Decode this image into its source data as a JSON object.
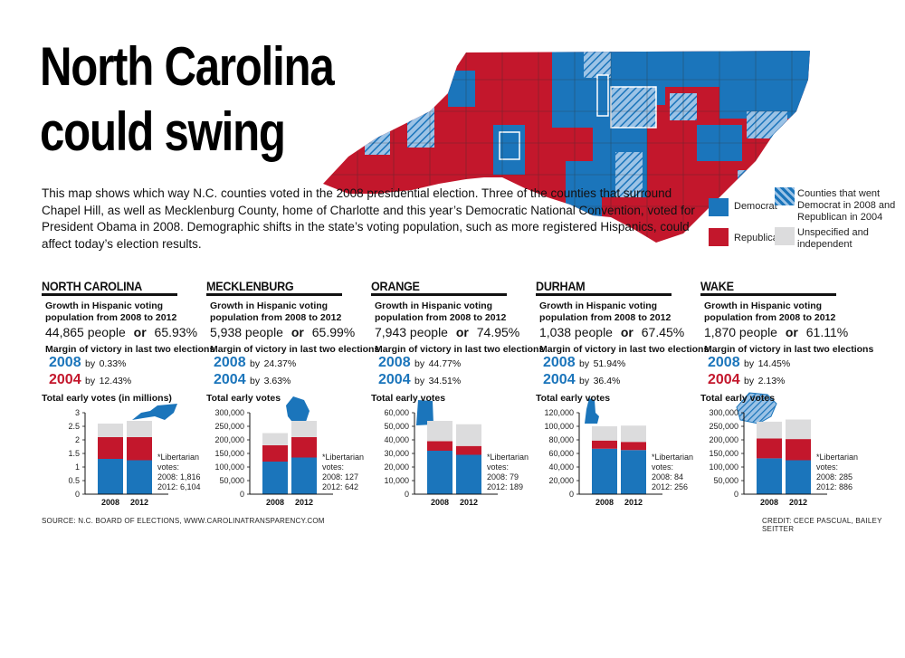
{
  "title": {
    "line1": "North Carolina",
    "line2": "could swing"
  },
  "intro": "This map shows which way N.C. counties voted in the 2008 presidential election. Three of the counties that surround Chapel Hill, as well as Mecklenburg County, home of Charlotte and this year’s Democratic National Convention, voted for President Obama in 2008. Demographic shifts in the state’s voting population, such as more registered Hispanics, could affect today’s election results.",
  "legend": {
    "democrat": "Democrat",
    "republican": "Republican",
    "swing": "Counties that went Democrat in 2008 and Republican in 2004",
    "unspecified": "Unspecified and independent"
  },
  "colors": {
    "democrat": "#1b75bb",
    "republican": "#c3172c",
    "unspecified": "#dcdcdd",
    "rule": "#111111"
  },
  "labels": {
    "growth_header": "Growth in Hispanic voting population from 2008 to 2012",
    "or": "or",
    "margin_header": "Margin of victory in last two elections",
    "by": "by",
    "year_2008": "2008",
    "year_2004": "2004",
    "libertarian_header": "*Libertarian votes:"
  },
  "panels": [
    {
      "name": "NORTH CAROLINA",
      "people": "44,865 people",
      "pct": "65.93%",
      "m2008": "0.33%",
      "m2004": "12.43%",
      "color2004": "#c3172c",
      "total_header": "Total early votes (in millions)",
      "lib2008": "2008: 1,816",
      "lib2012": "2012: 6,104"
    },
    {
      "name": "MECKLENBURG",
      "people": "5,938 people",
      "pct": "65.99%",
      "m2008": "24.37%",
      "m2004": "3.63%",
      "color2004": "#1b75bb",
      "total_header": "Total early votes",
      "lib2008": "2008: 127",
      "lib2012": "2012: 642"
    },
    {
      "name": "ORANGE",
      "people": "7,943 people",
      "pct": "74.95%",
      "m2008": "44.77%",
      "m2004": "34.51%",
      "color2004": "#1b75bb",
      "total_header": "Total early votes",
      "lib2008": "2008: 79",
      "lib2012": "2012: 189"
    },
    {
      "name": "DURHAM",
      "people": "1,038 people",
      "pct": "67.45%",
      "m2008": "51.94%",
      "m2004": "36.4%",
      "color2004": "#1b75bb",
      "total_header": "Total early votes",
      "lib2008": "2008: 84",
      "lib2012": "2012: 256"
    },
    {
      "name": "WAKE",
      "people": "1,870 people",
      "pct": "61.11%",
      "m2008": "14.45%",
      "m2004": "2.13%",
      "color2004": "#c3172c",
      "total_header": "Total early votes",
      "lib2008": "2008: 285",
      "lib2012": "2012: 886"
    }
  ],
  "chart_data": [
    {
      "type": "bar",
      "stacked": true,
      "title": "Total early votes (in millions)",
      "categories": [
        "2008",
        "2012"
      ],
      "ylim": [
        0,
        3
      ],
      "yticks": [
        "0",
        "0.5",
        "1",
        "1.5",
        "2",
        "2.5",
        "3"
      ],
      "series": [
        {
          "name": "Democrat",
          "values": [
            1.3,
            1.25
          ]
        },
        {
          "name": "Republican",
          "values": [
            0.8,
            0.85
          ]
        },
        {
          "name": "Unspecified and independent",
          "values": [
            0.5,
            0.6
          ]
        }
      ]
    },
    {
      "type": "bar",
      "stacked": true,
      "title": "Total early votes",
      "categories": [
        "2008",
        "2012"
      ],
      "ylim": [
        0,
        300000
      ],
      "yticks": [
        "0",
        "50,000",
        "100,000",
        "150,000",
        "200,000",
        "250,000",
        "300,000"
      ],
      "series": [
        {
          "name": "Democrat",
          "values": [
            120000,
            135000
          ]
        },
        {
          "name": "Republican",
          "values": [
            60000,
            75000
          ]
        },
        {
          "name": "Unspecified and independent",
          "values": [
            45000,
            60000
          ]
        }
      ]
    },
    {
      "type": "bar",
      "stacked": true,
      "title": "Total early votes",
      "categories": [
        "2008",
        "2012"
      ],
      "ylim": [
        0,
        60000
      ],
      "yticks": [
        "0",
        "10,000",
        "20,000",
        "30,000",
        "40,000",
        "50,000",
        "60,000"
      ],
      "series": [
        {
          "name": "Democrat",
          "values": [
            32000,
            29000
          ]
        },
        {
          "name": "Republican",
          "values": [
            7000,
            6500
          ]
        },
        {
          "name": "Unspecified and independent",
          "values": [
            15000,
            16000
          ]
        }
      ]
    },
    {
      "type": "bar",
      "stacked": true,
      "title": "Total early votes",
      "categories": [
        "2008",
        "2012"
      ],
      "ylim": [
        0,
        120000
      ],
      "yticks": [
        "0",
        "20,000",
        "40,000",
        "60,000",
        "80,000",
        "100,000",
        "120,000"
      ],
      "series": [
        {
          "name": "Democrat",
          "values": [
            67000,
            65000
          ]
        },
        {
          "name": "Republican",
          "values": [
            12000,
            12000
          ]
        },
        {
          "name": "Unspecified and independent",
          "values": [
            21000,
            24000
          ]
        }
      ]
    },
    {
      "type": "bar",
      "stacked": true,
      "title": "Total early votes",
      "categories": [
        "2008",
        "2012"
      ],
      "ylim": [
        0,
        300000
      ],
      "yticks": [
        "0",
        "50,000",
        "100,000",
        "150,000",
        "200,000",
        "250,000",
        "300,000"
      ],
      "series": [
        {
          "name": "Democrat",
          "values": [
            132000,
            125000
          ]
        },
        {
          "name": "Republican",
          "values": [
            73000,
            78000
          ]
        },
        {
          "name": "Unspecified and independent",
          "values": [
            62000,
            72000
          ]
        }
      ]
    }
  ],
  "footer": {
    "source": "SOURCE: N.C. BOARD OF ELECTIONS, WWW.CAROLINATRANSPARENCY.COM",
    "credit": "CREDIT: CECE PASCUAL, BAILEY SEITTER"
  }
}
